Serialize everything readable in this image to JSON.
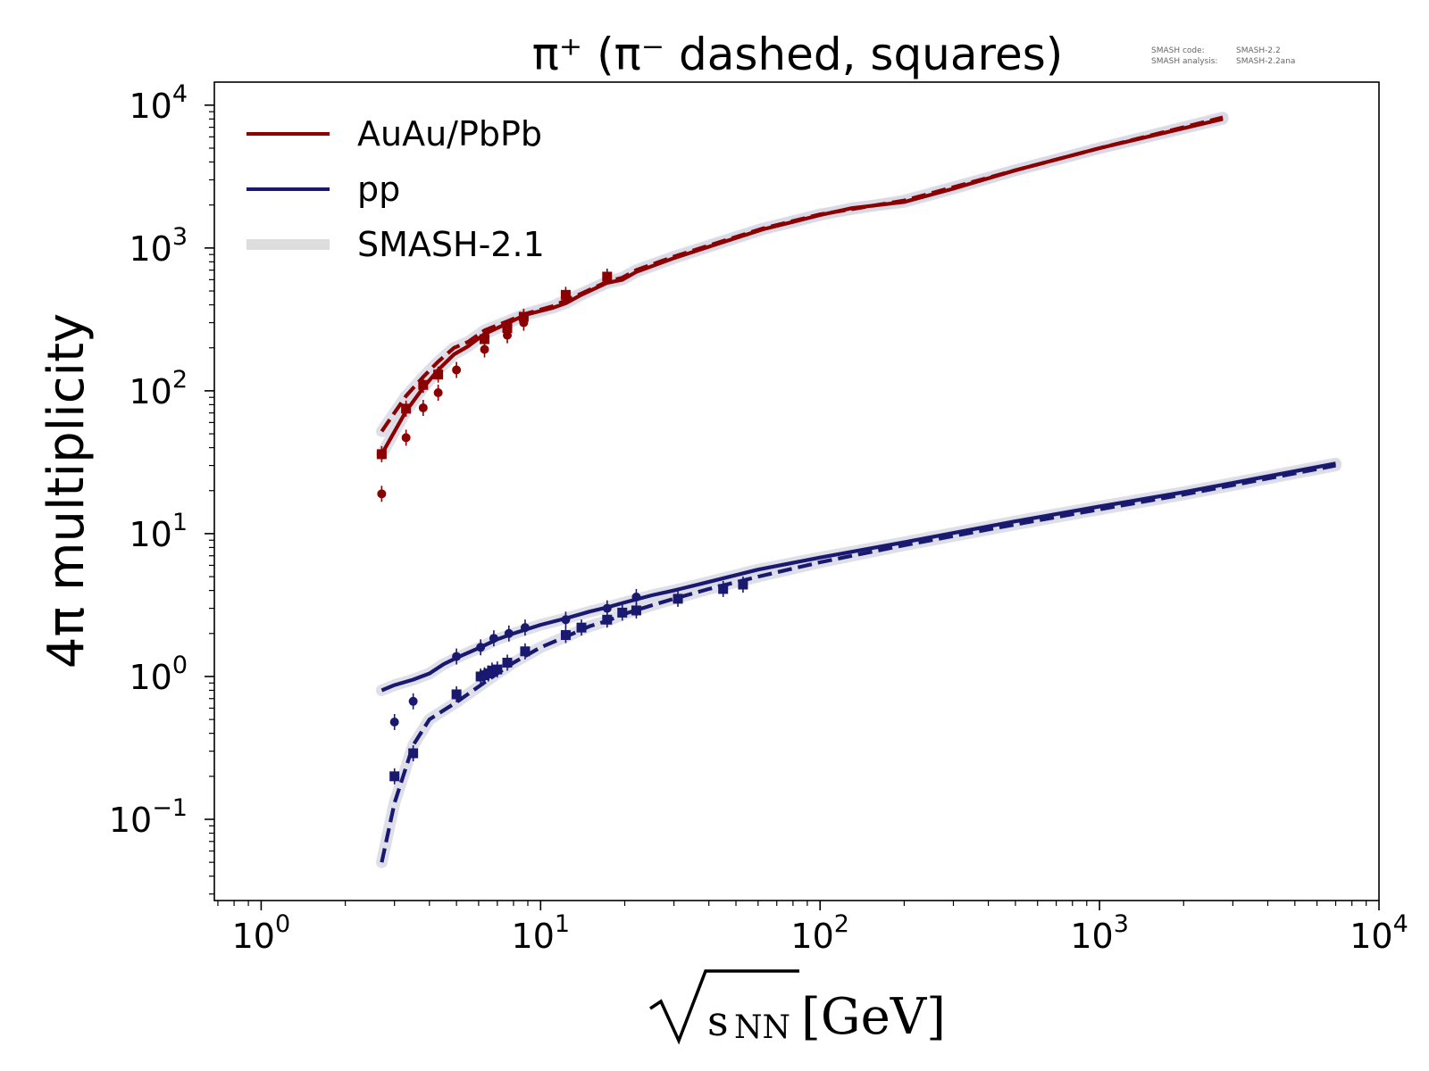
{
  "chart_data": {
    "type": "line",
    "title": "π⁺ (π⁻ dashed, squares)",
    "xlabel_radicand": "s",
    "xlabel_subscript": "NN",
    "xlabel_unit": "[GeV]",
    "ylabel": "4π multiplicity",
    "info_lines": [
      {
        "label": "SMASH code:",
        "value": "SMASH-2.2"
      },
      {
        "label": "SMASH analysis:",
        "value": "SMASH-2.2ana"
      }
    ],
    "x_scale": "log",
    "y_scale": "log",
    "xlim": [
      0.68,
      10000
    ],
    "ylim": [
      0.027,
      14500
    ],
    "x_ticks": [
      {
        "value": 1,
        "base": "10",
        "exp": "0"
      },
      {
        "value": 10,
        "base": "10",
        "exp": "1"
      },
      {
        "value": 100,
        "base": "10",
        "exp": "2"
      },
      {
        "value": 1000,
        "base": "10",
        "exp": "3"
      },
      {
        "value": 10000,
        "base": "10",
        "exp": "4"
      }
    ],
    "y_ticks": [
      {
        "value": 0.1,
        "base": "10",
        "exp": "−1"
      },
      {
        "value": 1,
        "base": "10",
        "exp": "0"
      },
      {
        "value": 10,
        "base": "10",
        "exp": "1"
      },
      {
        "value": 100,
        "base": "10",
        "exp": "2"
      },
      {
        "value": 1000,
        "base": "10",
        "exp": "3"
      },
      {
        "value": 10000,
        "base": "10",
        "exp": "4"
      }
    ],
    "grid": false,
    "legend_position": "top-left",
    "legend": [
      {
        "label": "AuAu/PbPb",
        "color": "#8b0000",
        "style": "solid"
      },
      {
        "label": "pp",
        "color": "#191970",
        "style": "solid"
      },
      {
        "label": "SMASH-2.1",
        "color": "#dddddd",
        "style": "band"
      }
    ],
    "colors": {
      "heavy": "#8b0000",
      "pp": "#191970",
      "band": "#d9d9e6"
    },
    "series": [
      {
        "group": "heavy",
        "style": "solid",
        "x": [
          2.7,
          3.3,
          3.8,
          4.3,
          4.9,
          5.5,
          6.3,
          7.7,
          8.8,
          11.0,
          12.3,
          14.0,
          17.3,
          19.6,
          22.0,
          30.0,
          45.0,
          62.4,
          100,
          130,
          200,
          300,
          500,
          1000,
          2760
        ],
        "y": [
          36,
          72,
          105,
          140,
          180,
          205,
          250,
          300,
          340,
          380,
          410,
          470,
          570,
          600,
          680,
          850,
          1100,
          1350,
          1700,
          1900,
          2100,
          2600,
          3500,
          5000,
          8000
        ]
      },
      {
        "group": "heavy",
        "style": "dashed",
        "x": [
          2.7,
          3.3,
          3.8,
          4.3,
          4.9,
          5.5,
          6.3,
          7.7,
          8.8,
          11.0,
          12.3,
          14.0,
          17.3,
          19.6,
          22.0,
          30.0,
          45.0,
          62.4,
          100,
          200,
          500,
          1000,
          2760
        ],
        "y": [
          52,
          92,
          125,
          160,
          200,
          220,
          265,
          310,
          345,
          390,
          430,
          480,
          580,
          620,
          700,
          870,
          1120,
          1370,
          1720,
          2150,
          3500,
          5000,
          8200
        ]
      },
      {
        "group": "pp",
        "style": "solid",
        "x": [
          2.7,
          3.0,
          3.5,
          4.0,
          4.5,
          5.0,
          6.0,
          7.0,
          8.0,
          10.0,
          12.3,
          15.0,
          17.3,
          20.0,
          25.0,
          30.0,
          40.0,
          60.0,
          100,
          200,
          500,
          1000,
          2000,
          7000
        ],
        "y": [
          0.8,
          0.87,
          0.95,
          1.05,
          1.22,
          1.35,
          1.58,
          1.82,
          2.0,
          2.3,
          2.55,
          2.85,
          3.05,
          3.3,
          3.7,
          4.0,
          4.6,
          5.6,
          6.8,
          8.7,
          12.2,
          15.5,
          19.5,
          31
        ]
      },
      {
        "group": "pp",
        "style": "dashed",
        "x": [
          2.7,
          3.0,
          3.5,
          4.0,
          4.5,
          5.0,
          6.0,
          7.0,
          8.0,
          10.0,
          12.3,
          15.0,
          17.3,
          20.0,
          25.0,
          30.0,
          40.0,
          60.0,
          100,
          200,
          500,
          1000,
          2000,
          7000
        ],
        "y": [
          0.05,
          0.13,
          0.33,
          0.5,
          0.58,
          0.66,
          0.85,
          1.05,
          1.25,
          1.6,
          1.9,
          2.25,
          2.45,
          2.75,
          3.15,
          3.5,
          4.1,
          5.0,
          6.3,
          8.3,
          11.6,
          14.8,
          18.8,
          30
        ]
      }
    ],
    "points": [
      {
        "group": "heavy",
        "marker": "circle",
        "x": [
          2.7,
          3.3,
          3.8,
          4.3,
          5.0,
          6.3,
          7.6,
          8.7
        ],
        "y": [
          19,
          47,
          76,
          97,
          140,
          195,
          245,
          300
        ]
      },
      {
        "group": "heavy",
        "marker": "square",
        "x": [
          2.7,
          3.3,
          3.8,
          4.3,
          6.3,
          7.6,
          8.7,
          12.3,
          17.3
        ],
        "y": [
          36,
          75,
          110,
          130,
          230,
          275,
          330,
          470,
          630
        ]
      },
      {
        "group": "pp",
        "marker": "circle",
        "x": [
          3.0,
          3.5,
          5.0,
          6.1,
          6.8,
          7.7,
          8.8,
          12.3,
          17.3,
          22.0
        ],
        "y": [
          0.48,
          0.67,
          1.38,
          1.6,
          1.85,
          2.0,
          2.2,
          2.5,
          3.0,
          3.6
        ]
      },
      {
        "group": "pp",
        "marker": "square",
        "x": [
          3.0,
          3.5,
          5.0,
          6.1,
          6.3,
          6.5,
          6.7,
          7.0,
          7.6,
          8.8,
          12.3,
          14.0,
          17.3,
          19.6,
          22.0,
          31.0,
          45.0,
          53.0
        ],
        "y": [
          0.2,
          0.29,
          0.75,
          1.0,
          1.02,
          1.05,
          1.1,
          1.12,
          1.25,
          1.5,
          1.95,
          2.2,
          2.5,
          2.8,
          2.9,
          3.5,
          4.1,
          4.4
        ]
      }
    ]
  }
}
